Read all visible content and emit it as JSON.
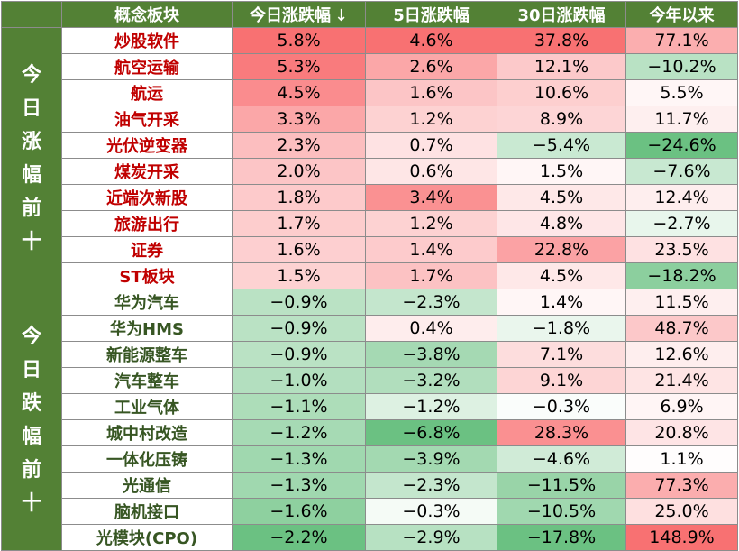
{
  "headers": {
    "concept": "概念板块",
    "today": "今日涨跌幅",
    "sort_arrow": "↓",
    "d5": "5日涨跌幅",
    "d30": "30日涨跌幅",
    "ytd": "今年以来"
  },
  "groups": [
    {
      "label": "今日涨幅前十",
      "kind": "up",
      "rows": [
        {
          "name": "炒股软件",
          "today": "5.8%",
          "d5": "4.6%",
          "d30": "37.8%",
          "ytd": "77.1%"
        },
        {
          "name": "航空运输",
          "today": "5.3%",
          "d5": "2.6%",
          "d30": "12.1%",
          "ytd": "−10.2%"
        },
        {
          "name": "航运",
          "today": "4.5%",
          "d5": "1.6%",
          "d30": "10.6%",
          "ytd": "5.5%"
        },
        {
          "name": "油气开采",
          "today": "3.3%",
          "d5": "1.2%",
          "d30": "8.9%",
          "ytd": "11.7%"
        },
        {
          "name": "光伏逆变器",
          "today": "2.3%",
          "d5": "0.7%",
          "d30": "−5.4%",
          "ytd": "−24.6%"
        },
        {
          "name": "煤炭开采",
          "today": "2.0%",
          "d5": "0.6%",
          "d30": "1.5%",
          "ytd": "−7.6%"
        },
        {
          "name": "近端次新股",
          "today": "1.8%",
          "d5": "3.4%",
          "d30": "4.5%",
          "ytd": "12.4%"
        },
        {
          "name": "旅游出行",
          "today": "1.7%",
          "d5": "1.2%",
          "d30": "4.8%",
          "ytd": "−2.7%"
        },
        {
          "name": "证券",
          "today": "1.6%",
          "d5": "1.4%",
          "d30": "22.8%",
          "ytd": "23.5%"
        },
        {
          "name": "ST板块",
          "today": "1.5%",
          "d5": "1.7%",
          "d30": "4.5%",
          "ytd": "−18.2%"
        }
      ]
    },
    {
      "label": "今日跌幅前十",
      "kind": "down",
      "rows": [
        {
          "name": "华为汽车",
          "today": "−0.9%",
          "d5": "−2.3%",
          "d30": "1.4%",
          "ytd": "11.5%"
        },
        {
          "name": "华为HMS",
          "today": "−0.9%",
          "d5": "0.4%",
          "d30": "−1.8%",
          "ytd": "48.7%"
        },
        {
          "name": "新能源整车",
          "today": "−0.9%",
          "d5": "−3.8%",
          "d30": "7.1%",
          "ytd": "12.6%"
        },
        {
          "name": "汽车整车",
          "today": "−1.0%",
          "d5": "−3.2%",
          "d30": "9.1%",
          "ytd": "21.4%"
        },
        {
          "name": "工业气体",
          "today": "−1.1%",
          "d5": "−1.2%",
          "d30": "−0.3%",
          "ytd": "6.9%"
        },
        {
          "name": "城中村改造",
          "today": "−1.2%",
          "d5": "−6.8%",
          "d30": "28.3%",
          "ytd": "20.8%"
        },
        {
          "name": "一体化压铸",
          "today": "−1.3%",
          "d5": "−3.9%",
          "d30": "−4.6%",
          "ytd": "1.1%"
        },
        {
          "name": "光通信",
          "today": "−1.3%",
          "d5": "−2.3%",
          "d30": "−11.5%",
          "ytd": "77.3%"
        },
        {
          "name": "脑机接口",
          "today": "−1.6%",
          "d5": "−0.3%",
          "d30": "−10.5%",
          "ytd": "25.0%"
        },
        {
          "name": "光模块(CPO)",
          "today": "−2.2%",
          "d5": "−2.9%",
          "d30": "−17.8%",
          "ytd": "148.9%"
        }
      ]
    }
  ],
  "colors": {
    "header_bg": "#538135",
    "up_text": "#c00000",
    "down_text": "#375623",
    "pos_max": "#f8696b",
    "neg_max": "#63be7b",
    "neutral": "#ffffff"
  }
}
